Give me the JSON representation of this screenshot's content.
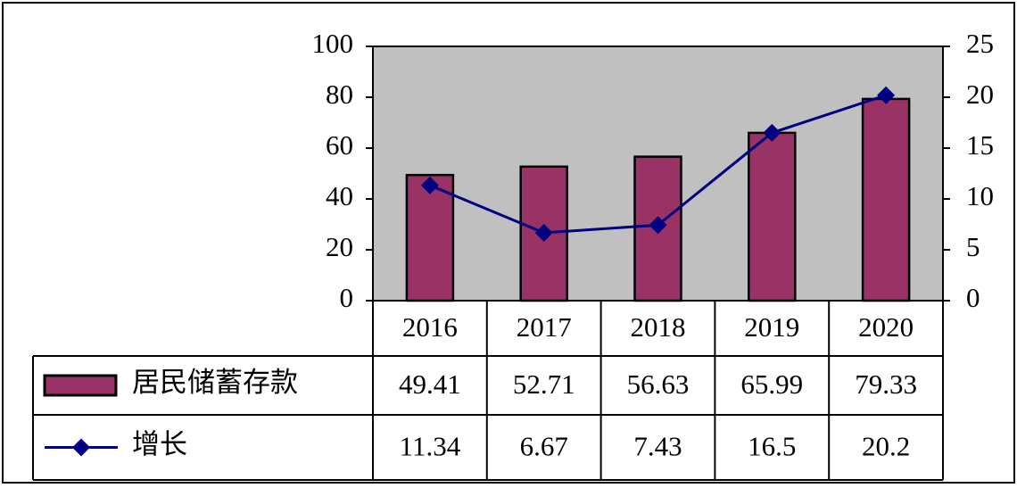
{
  "chart_data": {
    "type": "bar",
    "categories": [
      "2016",
      "2017",
      "2018",
      "2019",
      "2020"
    ],
    "series": [
      {
        "name": "居民储蓄存款",
        "color": "#993366",
        "type": "bar",
        "axis": "y",
        "values": [
          49.41,
          52.71,
          56.63,
          65.99,
          79.33
        ]
      },
      {
        "name": "增长",
        "color": "#000080",
        "type": "line",
        "axis": "y2",
        "values": [
          11.34,
          6.67,
          7.43,
          16.5,
          20.2
        ]
      }
    ],
    "ylim": [
      0,
      100
    ],
    "yticks": [
      0,
      20,
      40,
      60,
      80,
      100
    ],
    "y2lim": [
      0,
      25
    ],
    "y2ticks": [
      0,
      5,
      10,
      15,
      20,
      25
    ],
    "plot_background": "#c0c0c0"
  }
}
